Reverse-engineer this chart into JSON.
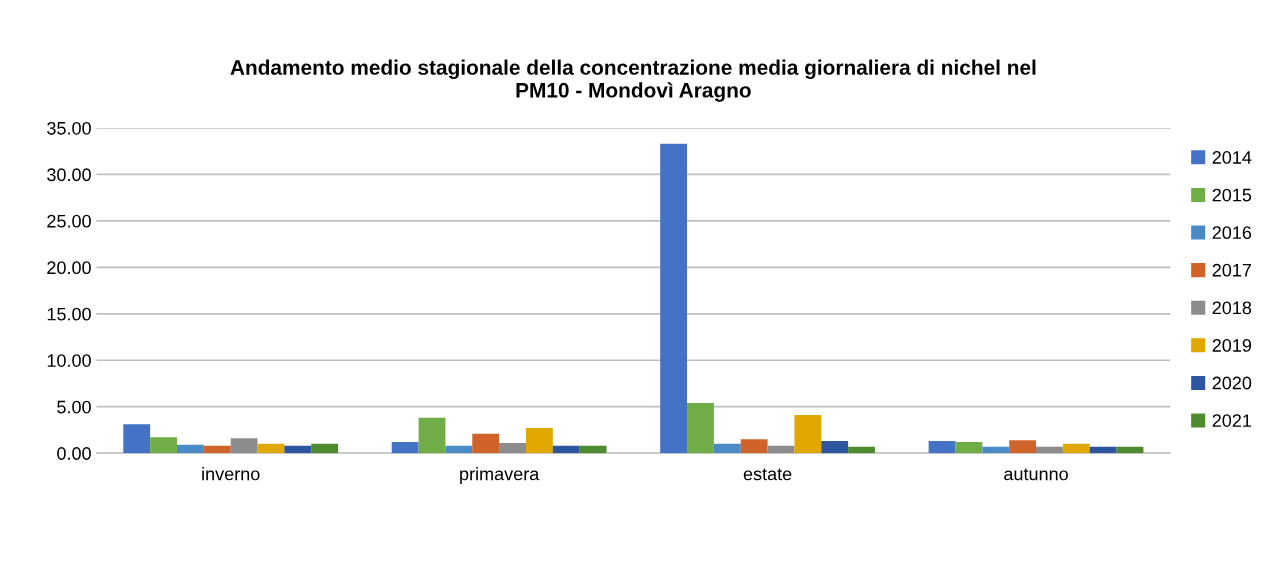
{
  "chart_data": {
    "type": "bar",
    "title": "Andamento medio stagionale della concentrazione media giornaliera di nichel nel\nPM10 - Mondovì Aragno",
    "categories": [
      "inverno",
      "primavera",
      "estate",
      "autunno"
    ],
    "series": [
      {
        "name": "2014",
        "color": "#4472c4",
        "values": [
          3.1,
          1.2,
          33.3,
          1.3
        ]
      },
      {
        "name": "2015",
        "color": "#70ad47",
        "values": [
          1.7,
          3.8,
          5.4,
          1.2
        ]
      },
      {
        "name": "2016",
        "color": "#4a8ac6",
        "values": [
          0.9,
          0.8,
          1.0,
          0.7
        ]
      },
      {
        "name": "2017",
        "color": "#d0632a",
        "values": [
          0.8,
          2.1,
          1.5,
          1.4
        ]
      },
      {
        "name": "2018",
        "color": "#8c8c8c",
        "values": [
          1.6,
          1.1,
          0.8,
          0.7
        ]
      },
      {
        "name": "2019",
        "color": "#e0a800",
        "values": [
          1.0,
          2.7,
          4.1,
          1.0
        ]
      },
      {
        "name": "2020",
        "color": "#2e55a0",
        "values": [
          0.8,
          0.8,
          1.3,
          0.7
        ]
      },
      {
        "name": "2021",
        "color": "#4e8a2e",
        "values": [
          1.0,
          0.8,
          0.7,
          0.7
        ]
      }
    ],
    "ylim": [
      0,
      35
    ],
    "yticks": [
      {
        "value": 0,
        "label": "0.00"
      },
      {
        "value": 5,
        "label": "5.00"
      },
      {
        "value": 10,
        "label": "10.00"
      },
      {
        "value": 15,
        "label": "15.00"
      },
      {
        "value": 20,
        "label": "20.00"
      },
      {
        "value": 25,
        "label": "25.00"
      },
      {
        "value": 30,
        "label": "30.00"
      },
      {
        "value": 35,
        "label": "35.00"
      }
    ],
    "grid": "y",
    "legend": "right"
  }
}
